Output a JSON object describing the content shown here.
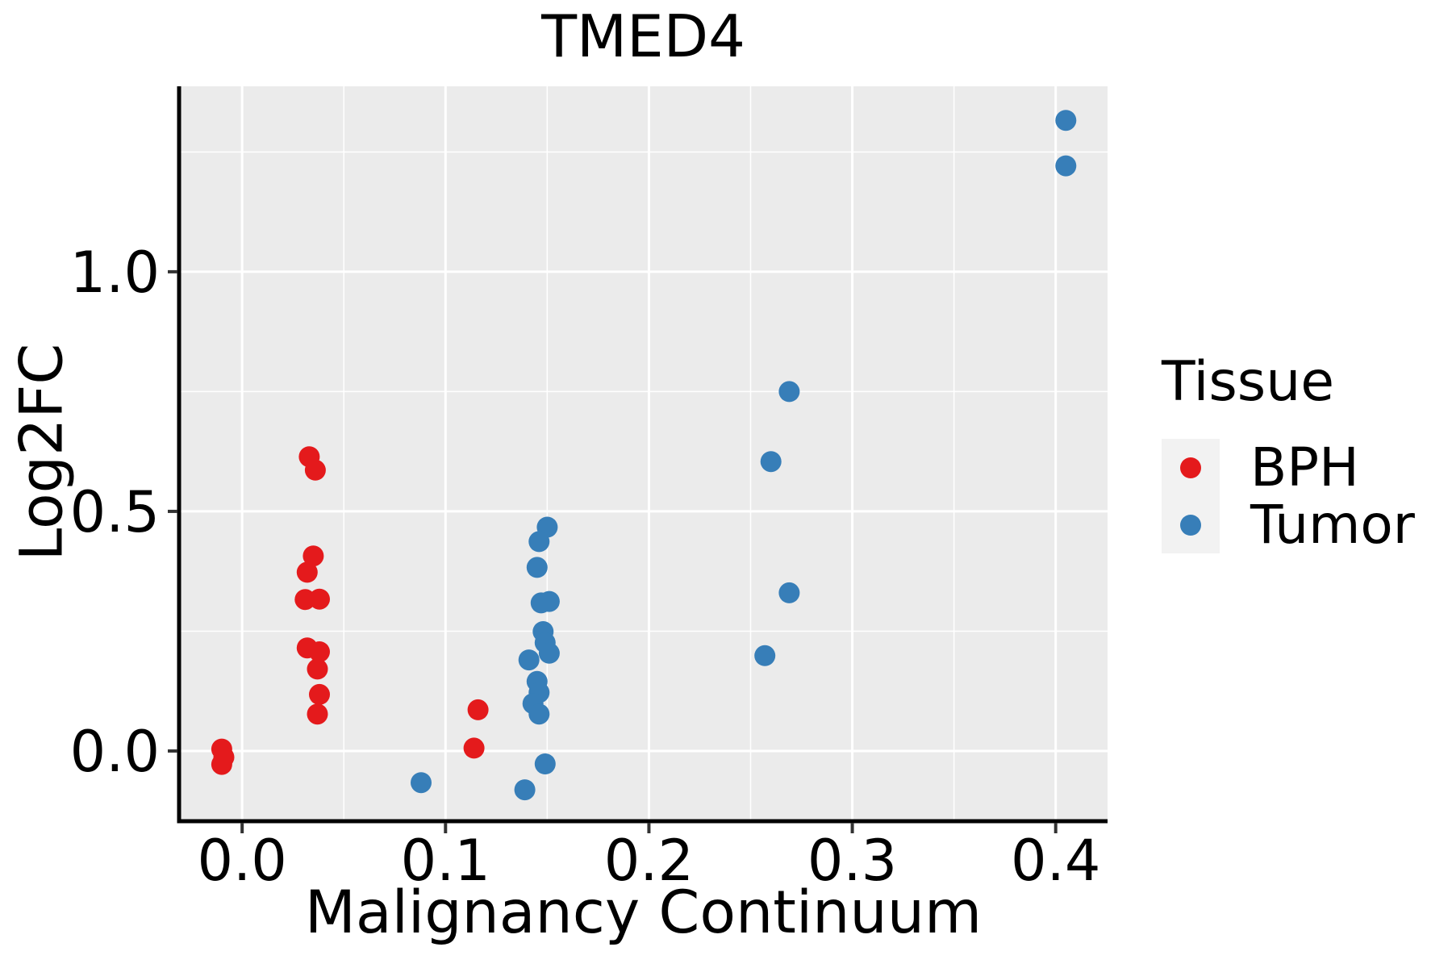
{
  "chart_data": {
    "type": "scatter",
    "title": "TMED4",
    "xlabel": "Malignancy Continuum",
    "ylabel": "Log2FC",
    "legend": {
      "title": "Tissue",
      "position": "right",
      "items": [
        {
          "label": "BPH",
          "color": "#E41A1C"
        },
        {
          "label": "Tumor",
          "color": "#377EB8"
        }
      ]
    },
    "axes": {
      "x": {
        "min": -0.031,
        "max": 0.4255,
        "major_ticks": [
          0.0,
          0.1,
          0.2,
          0.3,
          0.4
        ],
        "tick_labels": [
          "0.0",
          "0.1",
          "0.2",
          "0.3",
          "0.4"
        ],
        "minor_ticks": [
          0.05,
          0.15,
          0.25,
          0.35
        ]
      },
      "y": {
        "min": -0.1465,
        "max": 1.387,
        "major_ticks": [
          0.0,
          0.5,
          1.0
        ],
        "tick_labels": [
          "0.0",
          "0.5",
          "1.0"
        ],
        "minor_ticks": [
          0.25,
          0.75,
          1.25
        ]
      },
      "grid": true
    },
    "style": {
      "panel_bg": "#EBEBEB",
      "grid_color": "#FFFFFF",
      "major_grid_width": 3,
      "minor_grid_width": 1.5,
      "axis_color": "#000000",
      "axis_width": 5,
      "tick_color": "#333333",
      "tick_width": 4,
      "point_radius": 13
    },
    "series": [
      {
        "name": "BPH",
        "color": "#E41A1C",
        "points": [
          [
            -0.01,
            0.004
          ],
          [
            -0.009,
            -0.013
          ],
          [
            -0.01,
            -0.028
          ],
          [
            0.033,
            0.614
          ],
          [
            0.036,
            0.586
          ],
          [
            0.035,
            0.407
          ],
          [
            0.032,
            0.373
          ],
          [
            0.031,
            0.316
          ],
          [
            0.038,
            0.317
          ],
          [
            0.032,
            0.215
          ],
          [
            0.038,
            0.207
          ],
          [
            0.037,
            0.171
          ],
          [
            0.038,
            0.118
          ],
          [
            0.037,
            0.077
          ],
          [
            0.116,
            0.086
          ],
          [
            0.114,
            0.006
          ]
        ]
      },
      {
        "name": "Tumor",
        "color": "#377EB8",
        "points": [
          [
            0.088,
            -0.066
          ],
          [
            0.15,
            0.467
          ],
          [
            0.146,
            0.437
          ],
          [
            0.145,
            0.383
          ],
          [
            0.147,
            0.309
          ],
          [
            0.151,
            0.312
          ],
          [
            0.148,
            0.249
          ],
          [
            0.149,
            0.226
          ],
          [
            0.151,
            0.204
          ],
          [
            0.141,
            0.19
          ],
          [
            0.145,
            0.145
          ],
          [
            0.146,
            0.122
          ],
          [
            0.143,
            0.099
          ],
          [
            0.146,
            0.077
          ],
          [
            0.149,
            -0.027
          ],
          [
            0.139,
            -0.081
          ],
          [
            0.257,
            0.199
          ],
          [
            0.269,
            0.33
          ],
          [
            0.26,
            0.604
          ],
          [
            0.269,
            0.75
          ],
          [
            0.405,
            1.221
          ],
          [
            0.405,
            1.316
          ]
        ]
      }
    ]
  }
}
